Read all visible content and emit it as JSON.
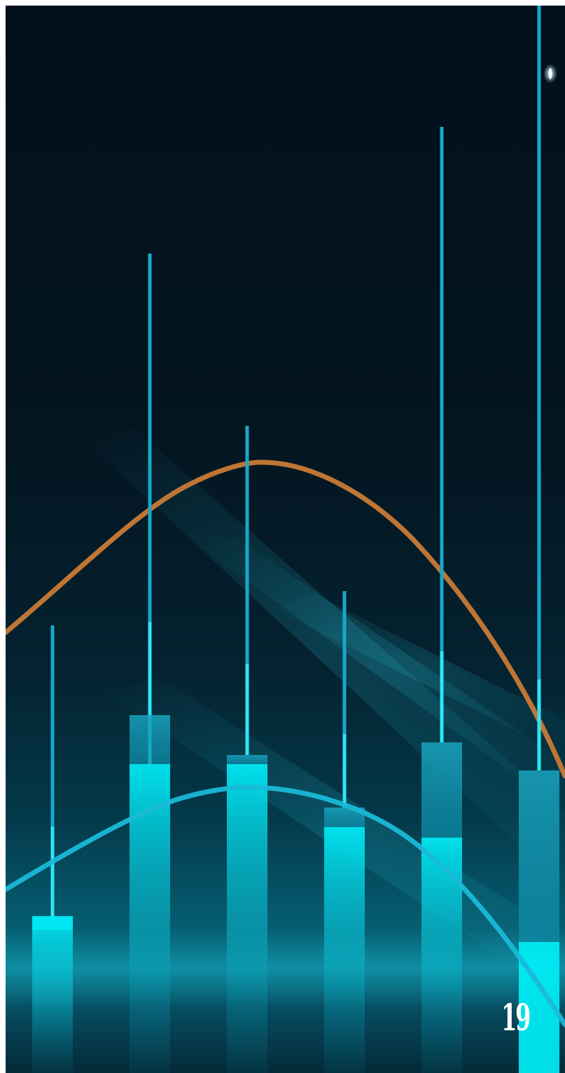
{
  "page": {
    "number": "19"
  },
  "colors": {
    "background_top": "#01101c",
    "background_glow": "#0a6f82",
    "bar_accent": "#00e5f0",
    "bar_cap": "#17a9c4",
    "curve_orange": "#c97a35",
    "curve_cyan": "#1ab9d8",
    "page_number": "#ffffff"
  },
  "icons": {
    "star": "sparkle-glint"
  }
}
